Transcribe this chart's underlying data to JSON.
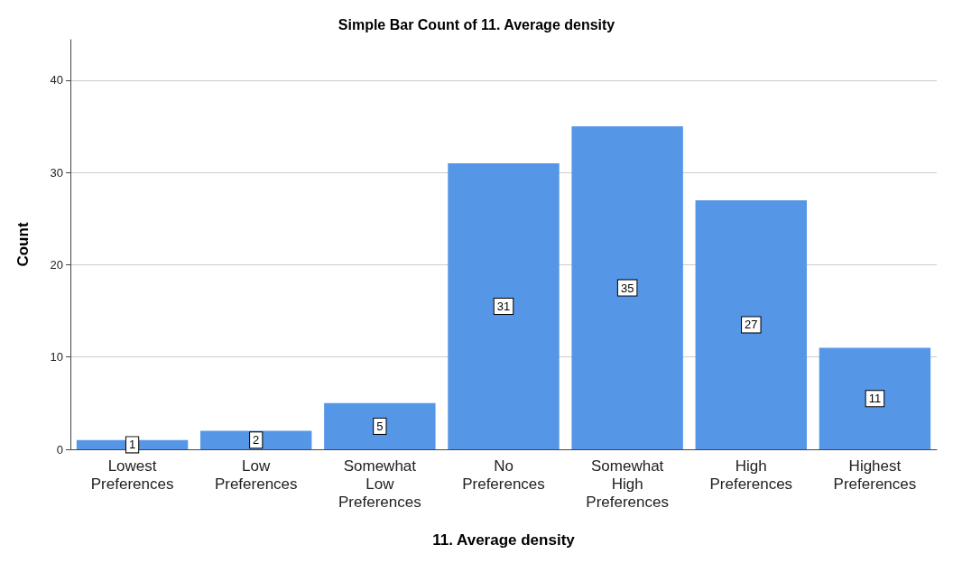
{
  "chart_data": {
    "type": "bar",
    "title": "Simple Bar Count of 11. Average density",
    "xlabel": "11. Average density",
    "ylabel": "Count",
    "categories": [
      "Lowest Preferences",
      "Low Preferences",
      "Somewhat Low Preferences",
      "No Preferences",
      "Somewhat High Preferences",
      "High Preferences",
      "Highest Preferences"
    ],
    "values": [
      1,
      2,
      5,
      31,
      35,
      27,
      11
    ],
    "color": "#5596e6",
    "ylim": [
      0,
      44.4
    ],
    "yticks": [
      0,
      10,
      20,
      30,
      40
    ],
    "grid": "y",
    "data_labels": true
  }
}
